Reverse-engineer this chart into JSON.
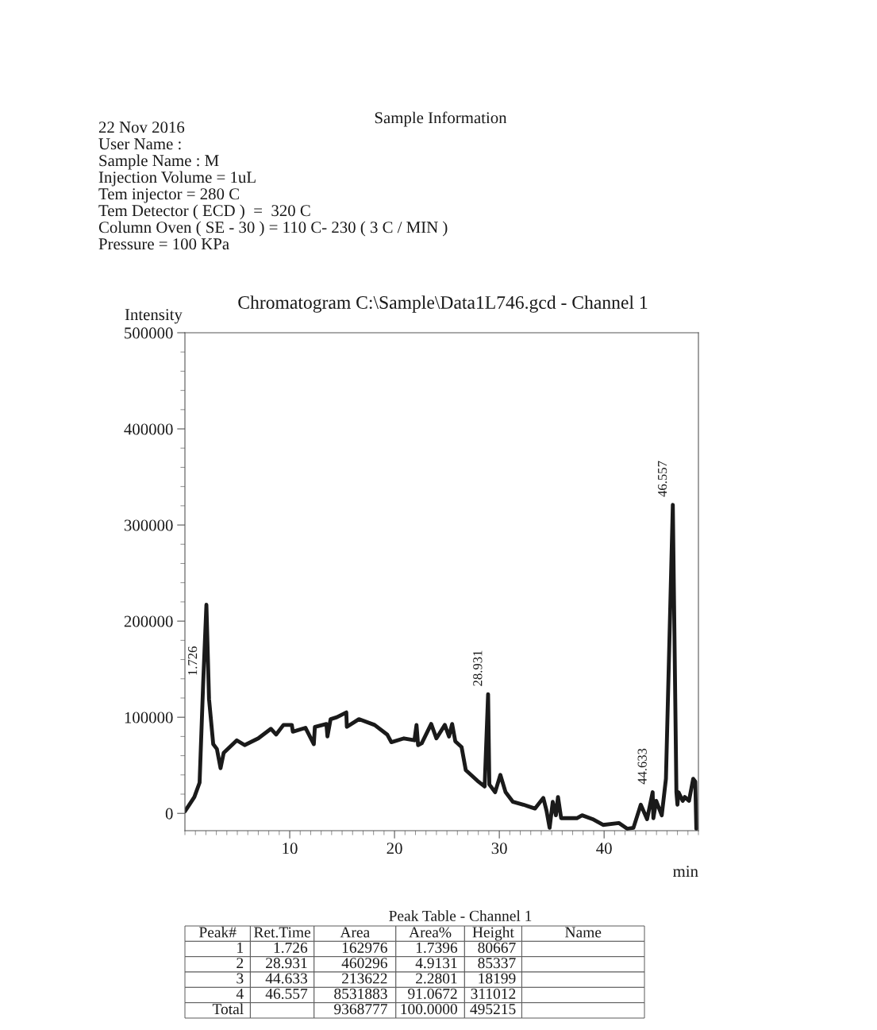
{
  "chart_data": {
    "type": "line",
    "title": "Chromatogram C:\\Sample\\Data1L746.gcd - Channel 1",
    "subtitle": "Sample Information",
    "xlabel": "min",
    "ylabel": "Intensity",
    "xlim": [
      0,
      49
    ],
    "xticks": [
      10,
      20,
      30,
      40
    ],
    "ylim": [
      -18000,
      500000
    ],
    "yticks": [
      0,
      100000,
      200000,
      300000,
      400000,
      500000
    ],
    "grid": false,
    "legend": false,
    "marker": "none",
    "line_style": "solid",
    "series": [
      {
        "color": "#1a1a1a",
        "x": [
          0,
          0.9,
          1.4,
          1.74,
          2.05,
          2.3,
          2.7,
          3.05,
          3.4,
          3.7,
          4.95,
          5.7,
          7.0,
          8.2,
          8.7,
          9.4,
          10.2,
          10.3,
          11.5,
          12.3,
          12.4,
          13.5,
          13.6,
          13.9,
          14.5,
          15.4,
          15.45,
          16.6,
          18.1,
          19.3,
          19.7,
          20.9,
          21.9,
          22.1,
          22.25,
          22.6,
          23.5,
          24.0,
          24.8,
          25.2,
          25.5,
          25.8,
          26.4,
          26.8,
          27.9,
          28.6,
          28.93,
          29.05,
          29.6,
          30.1,
          30.6,
          31.3,
          32.3,
          33.4,
          34.2,
          34.5,
          34.8,
          35.1,
          35.4,
          35.6,
          35.9,
          37.4,
          37.9,
          38.9,
          39.9,
          41.4,
          42.2,
          42.8,
          43.5,
          44.1,
          44.633,
          44.7,
          44.97,
          45.5,
          45.9,
          46.557,
          46.9,
          47.0,
          47.1,
          47.5,
          47.7,
          48.1,
          48.5,
          48.7,
          48.8
        ],
        "values": [
          2000,
          17000,
          32000,
          135000,
          217000,
          119000,
          72000,
          67000,
          47000,
          63000,
          76000,
          71000,
          78000,
          88000,
          82000,
          92000,
          92000,
          85000,
          89000,
          72000,
          90000,
          93000,
          80000,
          98000,
          100000,
          105000,
          90000,
          98000,
          92000,
          82000,
          74000,
          78000,
          76000,
          92000,
          71000,
          73000,
          93000,
          78000,
          92000,
          80000,
          93000,
          75000,
          69000,
          45000,
          34000,
          28000,
          124000,
          30000,
          22000,
          40000,
          22000,
          12000,
          9000,
          5000,
          16000,
          3000,
          -15000,
          12000,
          -2000,
          17000,
          -5000,
          -5000,
          -2000,
          -6000,
          -12000,
          -10000,
          -16000,
          -15000,
          9000,
          -6000,
          22000,
          -5000,
          13000,
          -2000,
          36000,
          321000,
          22000,
          9000,
          22000,
          13000,
          17000,
          13000,
          36000,
          33000,
          -16000
        ]
      }
    ],
    "annotations": [
      "22 Nov 2016",
      "User Name :",
      "Sample Name : M",
      "Injection Volume = 1uL",
      "Tem injector = 280 C",
      "Tem Detector ( ECD )  =  320 C",
      "Column Oven ( SE - 30 ) = 110 C- 230 ( 3 C / MIN )",
      "Pressure = 100 KPa",
      "Peak Table - Channel 1",
      "Peak#",
      "Ret.Time",
      "Area",
      "Area%",
      "Height",
      "Name",
      "1",
      "1.726",
      "162976",
      "1.7396",
      "80667",
      null,
      "2",
      "28.931",
      "460296",
      "4.9131",
      "85337",
      null,
      "3",
      "44.633",
      "213622",
      "2.2801",
      "18199",
      null,
      "4",
      "46.557",
      "8531883",
      "91.0672",
      "311012",
      null,
      "Total",
      null,
      "9368777",
      "100.0000",
      "495215",
      null,
      {
        "text": "1.726",
        "x": 1.726,
        "y": 135000
      },
      {
        "text": "28.931",
        "x": 28.93,
        "y": 124000
      },
      {
        "text": "44.633",
        "x": 44.633,
        "y": 22000
      },
      {
        "text": "46.557",
        "x": 46.557,
        "y": 321000
      }
    ]
  }
}
